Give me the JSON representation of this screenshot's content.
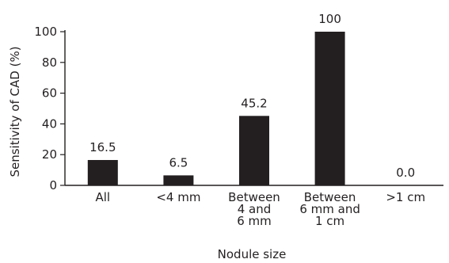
{
  "chart_data": {
    "type": "bar",
    "title": "",
    "xlabel": "Nodule size",
    "ylabel": "Sensitivity of CAD (%)",
    "ylim": [
      0,
      100
    ],
    "yticks": [
      0,
      20,
      40,
      60,
      80,
      100
    ],
    "ytick_labels": [
      "0",
      "20",
      "40",
      "60",
      "80",
      "100"
    ],
    "categories": [
      "All",
      "<4 mm",
      "Between 4 and 6 mm",
      "Between 6 mm and 1 cm",
      ">1 cm"
    ],
    "category_label_lines": [
      [
        "All"
      ],
      [
        "<4 mm"
      ],
      [
        "Between",
        "4 and",
        "6 mm"
      ],
      [
        "Between",
        "6 mm and",
        "1 cm"
      ],
      [
        ">1 cm"
      ]
    ],
    "values": [
      16.5,
      6.5,
      45.2,
      100,
      0.0
    ],
    "value_labels": [
      "16.5",
      "6.5",
      "45.2",
      "100",
      "0.0"
    ],
    "bar_color": "#231f20",
    "grid": false,
    "legend": "none"
  }
}
